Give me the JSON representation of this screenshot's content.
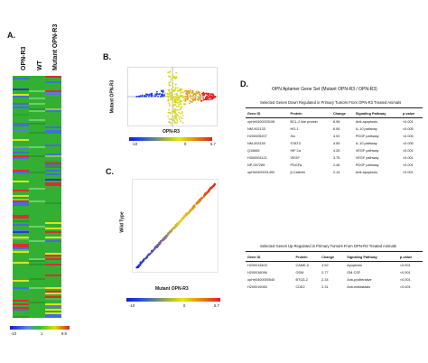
{
  "panels": {
    "a": {
      "letter": "A.",
      "columns": [
        "OPN-R3",
        "WT",
        "Mutant OPN-R3"
      ],
      "scale": {
        "min": "-10",
        "mid": "1",
        "max": "9.9"
      }
    },
    "b": {
      "letter": "B.",
      "xlabel": "OPN-R3",
      "ylabel": "Mutant OPN-R3",
      "scale": {
        "min": "-10",
        "mid": "0",
        "max": "5.7"
      }
    },
    "c": {
      "letter": "C.",
      "xlabel": "Mutant OPN-R3",
      "ylabel": "Wild Type",
      "scale": {
        "min": "-10",
        "mid": "0",
        "max": "5.7"
      }
    },
    "d": {
      "letter": "D.",
      "title": "OPN Aptamer Gene Set (Mutant OPN-R3 / OPN-R3)",
      "down_title": "Selected Genes Down Regulated in Primary Tumors From OPN-R3 Treated Animals",
      "up_title": "Selected Genes Up Regulated in Primary Tumors From OPN-R3 Treated Animals",
      "headers": [
        "Gene ID",
        "Protein",
        "Change",
        "Signaling Pathway",
        "p-value"
      ],
      "down_rows": [
        [
          "opHri0400003106",
          "BCL-2 like protein",
          "8.98",
          "Anti-apoptosis",
          "<0.001"
        ],
        [
          "NM-002133",
          "HO-1",
          "6.06",
          "IL-10 pathway",
          "<0.005"
        ],
        [
          "H200005207",
          "Src",
          "4.92",
          "PDGF pathway",
          "<0.005"
        ],
        [
          "NM-003150",
          "STAT3",
          "4.59",
          "IL-10 pathway",
          "<0.005"
        ],
        [
          "Q16665",
          "HIF-1α",
          "4.26",
          "VEGF pathway",
          "<0.001"
        ],
        [
          "H300003121",
          "VEGF",
          "3.75",
          "VEGF pathway",
          "<0.001"
        ],
        [
          "NP-057289",
          "PDGFα",
          "2.46",
          "PDGF pathway",
          "<0.001"
        ],
        [
          "opHri0400001492",
          "β-Catenin",
          "2.14",
          "Anti-apoptosis",
          "<0.001"
        ]
      ],
      "up_rows": [
        [
          "H200013403",
          "CAMK-II",
          "3.52",
          "Apoptosis",
          "<0.001"
        ],
        [
          "H200016096",
          "OSM",
          "2.77",
          "GM-CSF",
          "<0.001"
        ],
        [
          "opHri0400000540",
          "BTG3-2",
          "2.34",
          "Anti-proliferative",
          "<0.001"
        ],
        [
          "H200019083",
          "CDE2",
          "2.31",
          "Anti-metastasis",
          "<0.001"
        ]
      ]
    }
  },
  "colors": {
    "blue": "#1a1ad0",
    "yellow": "#e8e800",
    "red": "#e01010",
    "green": "#2ec02e"
  }
}
